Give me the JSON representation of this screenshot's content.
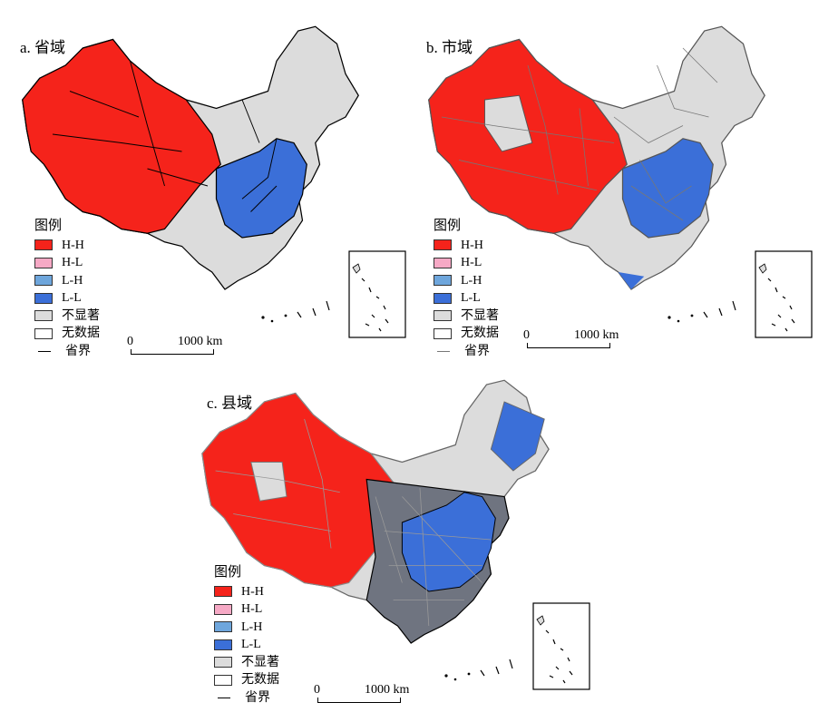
{
  "colors": {
    "hh": "#f5231b",
    "hl": "#f6a9c5",
    "lh": "#6ea6dc",
    "ll": "#3b6fd8",
    "ns": "#dcdcdc",
    "nd": "#ffffff",
    "boundary": "#000000",
    "county_dark": "#6f7480"
  },
  "panels": [
    {
      "title": "a. 省域",
      "legend_title": "图例",
      "legend": [
        {
          "key": "hh",
          "label": "H-H"
        },
        {
          "key": "hl",
          "label": "H-L"
        },
        {
          "key": "lh",
          "label": "L-H"
        },
        {
          "key": "ll",
          "label": "L-L"
        },
        {
          "key": "ns",
          "label": "不显著"
        },
        {
          "key": "nd",
          "label": "无数据"
        },
        {
          "key": "line",
          "label": "省界"
        }
      ],
      "scale": {
        "zero": "0",
        "value": "1000 km"
      }
    },
    {
      "title": "b. 市域",
      "legend_title": "图例",
      "legend": [
        {
          "key": "hh",
          "label": "H-H"
        },
        {
          "key": "hl",
          "label": "H-L"
        },
        {
          "key": "lh",
          "label": "L-H"
        },
        {
          "key": "ll",
          "label": "L-L"
        },
        {
          "key": "ns",
          "label": "不显著"
        },
        {
          "key": "nd",
          "label": "无数据"
        },
        {
          "key": "line",
          "label": "省界"
        }
      ],
      "scale": {
        "zero": "0",
        "value": "1000 km"
      }
    },
    {
      "title": "c. 县域",
      "legend_title": "图例",
      "legend": [
        {
          "key": "hh",
          "label": "H-H"
        },
        {
          "key": "hl",
          "label": "H-L"
        },
        {
          "key": "lh",
          "label": "L-H"
        },
        {
          "key": "ll",
          "label": "L-L"
        },
        {
          "key": "ns",
          "label": "不显著"
        },
        {
          "key": "nd",
          "label": "无数据"
        },
        {
          "key": "line",
          "label": "省界"
        }
      ],
      "scale": {
        "zero": "0",
        "value": "1000 km"
      }
    }
  ]
}
